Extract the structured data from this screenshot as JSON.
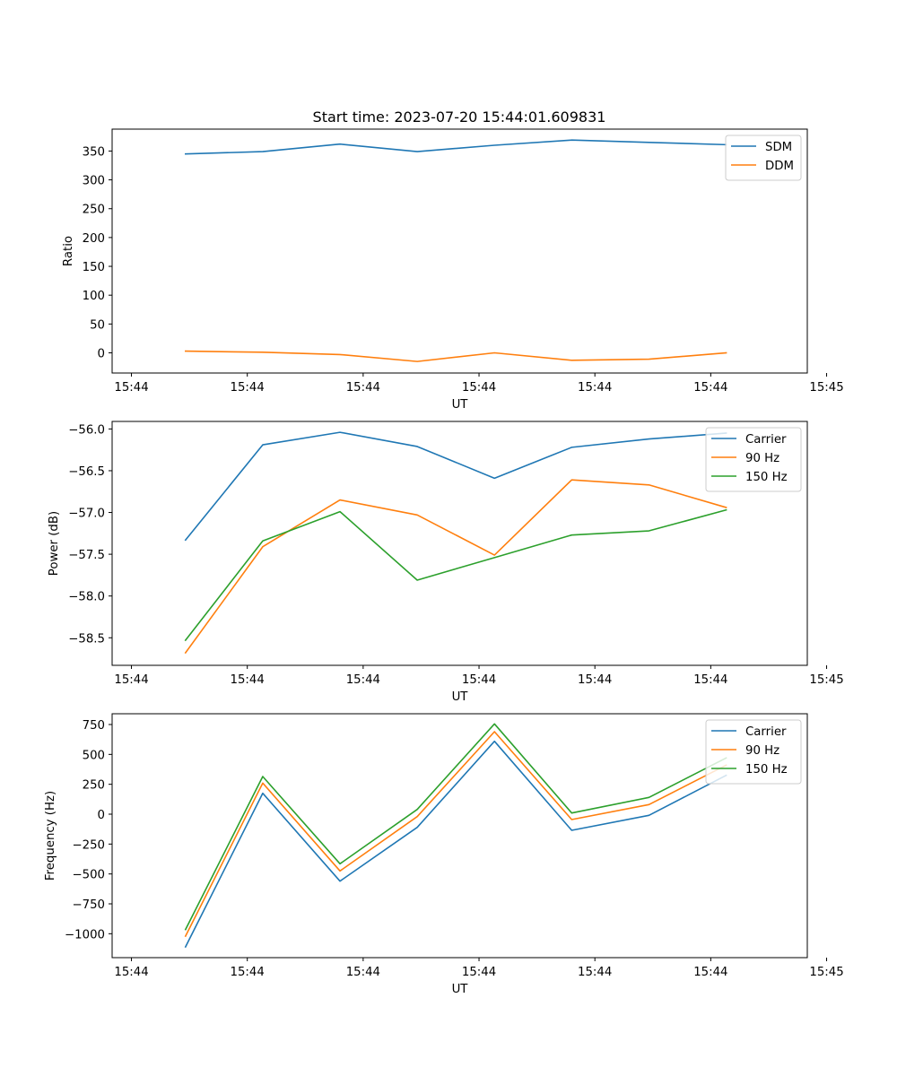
{
  "figure": {
    "title": "Start time: 2023-07-20 15:44:01.609831"
  },
  "colors": {
    "c0": "#1f77b4",
    "c1": "#ff7f0e",
    "c2": "#2ca02c"
  },
  "chart_data": [
    {
      "type": "line",
      "title": "Start time: 2023-07-20 15:44:01.609831",
      "xlabel": "UT",
      "ylabel": "Ratio",
      "xlim": [
        -0.75,
        8.25
      ],
      "ylim": [
        -35,
        388
      ],
      "x_ticks": [
        -0.5,
        1.0,
        2.5,
        4.0,
        5.5,
        7.0,
        8.5
      ],
      "x_tick_labels": [
        "15:44",
        "15:44",
        "15:44",
        "15:44",
        "15:44",
        "15:44",
        "15:45"
      ],
      "y_ticks": [
        0,
        50,
        100,
        150,
        200,
        250,
        300,
        350
      ],
      "y_tick_labels": [
        "0",
        "50",
        "100",
        "150",
        "200",
        "250",
        "300",
        "350"
      ],
      "legend_position": "top-right",
      "x": [
        0.2,
        1.2,
        2.2,
        3.2,
        4.2,
        5.2,
        6.2,
        7.2
      ],
      "series": [
        {
          "name": "SDM",
          "color": "#1f77b4",
          "values": [
            345,
            349,
            362,
            349,
            360,
            369,
            365,
            361
          ]
        },
        {
          "name": "DDM",
          "color": "#ff7f0e",
          "values": [
            3,
            1,
            -3,
            -15,
            0,
            -13,
            -11,
            0
          ]
        }
      ]
    },
    {
      "type": "line",
      "title": "",
      "xlabel": "UT",
      "ylabel": "Power (dB)",
      "xlim": [
        -0.75,
        8.25
      ],
      "ylim": [
        -58.83,
        -55.91
      ],
      "x_ticks": [
        -0.5,
        1.0,
        2.5,
        4.0,
        5.5,
        7.0,
        8.5
      ],
      "x_tick_labels": [
        "15:44",
        "15:44",
        "15:44",
        "15:44",
        "15:44",
        "15:44",
        "15:45"
      ],
      "y_ticks": [
        -58.5,
        -58.0,
        -57.5,
        -57.0,
        -56.5,
        -56.0
      ],
      "y_tick_labels": [
        "−58.5",
        "−58.0",
        "−57.5",
        "−57.0",
        "−56.5",
        "−56.0"
      ],
      "legend_position": "top-right",
      "x": [
        0.2,
        1.2,
        2.2,
        3.2,
        4.2,
        5.2,
        6.2,
        7.2
      ],
      "series": [
        {
          "name": "Carrier",
          "color": "#1f77b4",
          "values": [
            -57.33,
            -56.19,
            -56.04,
            -56.21,
            -56.59,
            -56.22,
            -56.12,
            -56.05
          ]
        },
        {
          "name": "90 Hz",
          "color": "#ff7f0e",
          "values": [
            -58.68,
            -57.41,
            -56.85,
            -57.03,
            -57.51,
            -56.61,
            -56.67,
            -56.94
          ]
        },
        {
          "name": "150 Hz",
          "color": "#2ca02c",
          "values": [
            -58.53,
            -57.34,
            -56.99,
            -57.81,
            -57.54,
            -57.27,
            -57.22,
            -56.97
          ]
        }
      ]
    },
    {
      "type": "line",
      "title": "",
      "xlabel": "UT",
      "ylabel": "Frequency (Hz)",
      "xlim": [
        -0.75,
        8.25
      ],
      "ylim": [
        -1200,
        840
      ],
      "x_ticks": [
        -0.5,
        1.0,
        2.5,
        4.0,
        5.5,
        7.0,
        8.5
      ],
      "x_tick_labels": [
        "15:44",
        "15:44",
        "15:44",
        "15:44",
        "15:44",
        "15:44",
        "15:45"
      ],
      "y_ticks": [
        -1000,
        -750,
        -500,
        -250,
        0,
        250,
        500,
        750
      ],
      "y_tick_labels": [
        "−1000",
        "−750",
        "−500",
        "−250",
        "0",
        "250",
        "500",
        "750"
      ],
      "legend_position": "top-right",
      "x": [
        0.2,
        1.2,
        2.2,
        3.2,
        4.2,
        5.2,
        6.2,
        7.2
      ],
      "series": [
        {
          "name": "Carrier",
          "color": "#1f77b4",
          "values": [
            -1110,
            175,
            -560,
            -110,
            610,
            -135,
            -10,
            325
          ]
        },
        {
          "name": "90 Hz",
          "color": "#ff7f0e",
          "values": [
            -1020,
            260,
            -475,
            -20,
            690,
            -45,
            80,
            410
          ]
        },
        {
          "name": "150 Hz",
          "color": "#2ca02c",
          "values": [
            -965,
            315,
            -415,
            40,
            755,
            10,
            140,
            470
          ]
        }
      ]
    }
  ]
}
